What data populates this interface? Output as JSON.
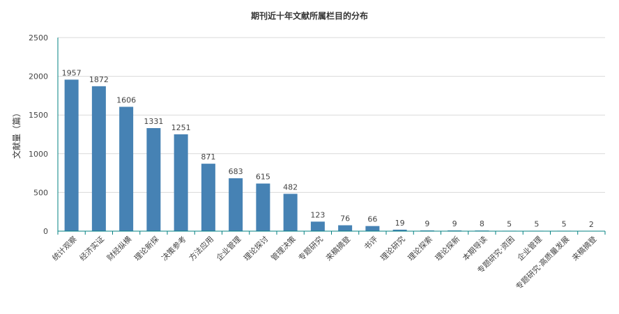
{
  "chart_data": {
    "type": "bar",
    "title": "期刊近十年文献所属栏目的分布",
    "ylabel": "文献量（篇）",
    "xlabel": "",
    "ylim": [
      0,
      2500
    ],
    "yticks": [
      0,
      500,
      1000,
      1500,
      2000,
      2500
    ],
    "grid": true,
    "legend": "none",
    "categories": [
      "统计观察",
      "经济实证",
      "财经纵横",
      "理论新探",
      "决策参考",
      "方法应用",
      "企业管理",
      "理论探讨",
      "管理决策",
      "专题研究",
      "来稿摘登",
      "书评",
      "理论研究",
      "理论探索",
      "理论探新",
      "本期导读",
      "专题研究·资困",
      "企业管理",
      "专题研究·高质量发展",
      "来稿摘登"
    ],
    "values": [
      1957,
      1872,
      1606,
      1331,
      1251,
      871,
      683,
      615,
      482,
      123,
      76,
      66,
      19,
      9,
      9,
      8,
      5,
      5,
      5,
      2
    ],
    "colors": {
      "bar": "#4682b4",
      "grid": "#d9d9d9",
      "axis": "#008080",
      "text": "#444444"
    }
  }
}
